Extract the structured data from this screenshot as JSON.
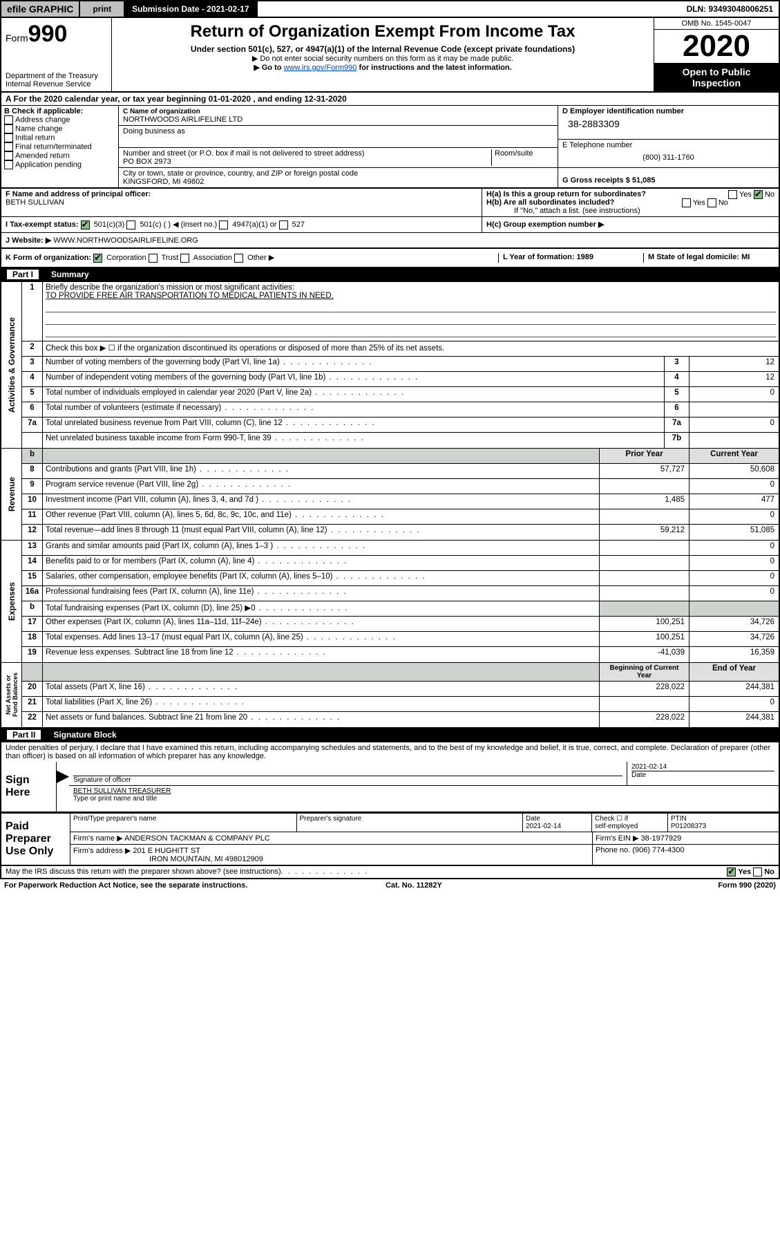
{
  "topbar": {
    "efile": "efile GRAPHIC",
    "print": "print",
    "subdate_label": "Submission Date - 2021-02-17",
    "dln": "DLN: 93493048006251"
  },
  "header": {
    "form_prefix": "Form",
    "form_no": "990",
    "title": "Return of Organization Exempt From Income Tax",
    "sub1": "Under section 501(c), 527, or 4947(a)(1) of the Internal Revenue Code (except private foundations)",
    "sub2a": "▶ Do not enter social security numbers on this form as it may be made public.",
    "sub2b_pre": "▶ Go to ",
    "sub2b_link": "www.irs.gov/Form990",
    "sub2b_post": " for instructions and the latest information.",
    "dept1": "Department of the Treasury",
    "dept2": "Internal Revenue Service",
    "omb": "OMB No. 1545-0047",
    "year": "2020",
    "open1": "Open to Public",
    "open2": "Inspection"
  },
  "period": {
    "text": "A For the 2020 calendar year, or tax year beginning 01-01-2020      , and ending 12-31-2020"
  },
  "B": {
    "label": "B Check if applicable:",
    "opts": [
      "Address change",
      "Name change",
      "Initial return",
      "Final return/terminated",
      "Amended return",
      "Application pending"
    ]
  },
  "C": {
    "name_lbl": "C Name of organization",
    "name": "NORTHWOODS AIRLIFELINE LTD",
    "dba_lbl": "Doing business as",
    "addr_lbl": "Number and street (or P.O. box if mail is not delivered to street address)",
    "room_lbl": "Room/suite",
    "addr": "PO BOX 2973",
    "city_lbl": "City or town, state or province, country, and ZIP or foreign postal code",
    "city": "KINGSFORD, MI  49802",
    "F_lbl": "F Name and address of principal officer:",
    "F_name": "BETH SULLIVAN"
  },
  "D": {
    "ein_lbl": "D Employer identification number",
    "ein": "38-2883309",
    "tel_lbl": "E Telephone number",
    "tel": "(800) 311-1760",
    "gross_lbl": "G Gross receipts $ 51,085"
  },
  "H": {
    "a": "H(a)  Is this a group return for subordinates?",
    "b": "H(b)  Are all subordinates included?",
    "bnote": "If \"No,\" attach a list. (see instructions)",
    "c": "H(c)  Group exemption number ▶"
  },
  "I": {
    "lbl": "I    Tax-exempt status:",
    "opt1": "501(c)(3)",
    "opt2": "501(c) (   ) ◀ (insert no.)",
    "opt3": "4947(a)(1) or",
    "opt4": "527"
  },
  "J": {
    "lbl": "J   Website: ▶",
    "val": "WWW.NORTHWOODSAIRLIFELINE.ORG"
  },
  "K": {
    "lbl": "K Form of organization:",
    "opts": [
      "Corporation",
      "Trust",
      "Association",
      "Other ▶"
    ],
    "L": "L Year of formation: 1989",
    "M": "M State of legal domicile: MI"
  },
  "partI": {
    "label": "Part I",
    "title": "Summary"
  },
  "partII": {
    "label": "Part II",
    "title": "Signature Block"
  },
  "summary": {
    "q1": "Briefly describe the organization's mission or most significant activities:",
    "q1a": "TO PROVIDE FREE AIR TRANSPORTATION TO MEDICAL PATIENTS IN NEED.",
    "q2": "Check this box ▶ ☐  if the organization discontinued its operations or disposed of more than 25% of its net assets.",
    "rows_gov": [
      {
        "n": "3",
        "d": "Number of voting members of the governing body (Part VI, line 1a)",
        "box": "3",
        "v": "12"
      },
      {
        "n": "4",
        "d": "Number of independent voting members of the governing body (Part VI, line 1b)",
        "box": "4",
        "v": "12"
      },
      {
        "n": "5",
        "d": "Total number of individuals employed in calendar year 2020 (Part V, line 2a)",
        "box": "5",
        "v": "0"
      },
      {
        "n": "6",
        "d": "Total number of volunteers (estimate if necessary)",
        "box": "6",
        "v": ""
      },
      {
        "n": "7a",
        "d": "Total unrelated business revenue from Part VIII, column (C), line 12",
        "box": "7a",
        "v": "0"
      },
      {
        "n": "",
        "d": "Net unrelated business taxable income from Form 990-T, line 39",
        "box": "7b",
        "v": ""
      }
    ],
    "col_hdr": {
      "b": "b",
      "prior": "Prior Year",
      "current": "Current Year"
    },
    "rows_rev": [
      {
        "n": "8",
        "d": "Contributions and grants (Part VIII, line 1h)",
        "p": "57,727",
        "c": "50,608"
      },
      {
        "n": "9",
        "d": "Program service revenue (Part VIII, line 2g)",
        "p": "",
        "c": "0"
      },
      {
        "n": "10",
        "d": "Investment income (Part VIII, column (A), lines 3, 4, and 7d )",
        "p": "1,485",
        "c": "477"
      },
      {
        "n": "11",
        "d": "Other revenue (Part VIII, column (A), lines 5, 6d, 8c, 9c, 10c, and 11e)",
        "p": "",
        "c": "0"
      },
      {
        "n": "12",
        "d": "Total revenue—add lines 8 through 11 (must equal Part VIII, column (A), line 12)",
        "p": "59,212",
        "c": "51,085"
      }
    ],
    "rows_exp": [
      {
        "n": "13",
        "d": "Grants and similar amounts paid (Part IX, column (A), lines 1–3 )",
        "p": "",
        "c": "0"
      },
      {
        "n": "14",
        "d": "Benefits paid to or for members (Part IX, column (A), line 4)",
        "p": "",
        "c": "0"
      },
      {
        "n": "15",
        "d": "Salaries, other compensation, employee benefits (Part IX, column (A), lines 5–10)",
        "p": "",
        "c": "0"
      },
      {
        "n": "16a",
        "d": "Professional fundraising fees (Part IX, column (A), line 11e)",
        "p": "",
        "c": "0"
      },
      {
        "n": "b",
        "d": "Total fundraising expenses (Part IX, column (D), line 25)  ▶0",
        "p": "GRAY",
        "c": "GRAY"
      },
      {
        "n": "17",
        "d": "Other expenses (Part IX, column (A), lines 11a–11d, 11f–24e)",
        "p": "100,251",
        "c": "34,726"
      },
      {
        "n": "18",
        "d": "Total expenses. Add lines 13–17 (must equal Part IX, column (A), line 25)",
        "p": "100,251",
        "c": "34,726"
      },
      {
        "n": "19",
        "d": "Revenue less expenses. Subtract line 18 from line 12",
        "p": "-41,039",
        "c": "16,359"
      }
    ],
    "net_hdr": {
      "a": "Beginning of Current Year",
      "b": "End of Year"
    },
    "rows_net": [
      {
        "n": "20",
        "d": "Total assets (Part X, line 16)",
        "p": "228,022",
        "c": "244,381"
      },
      {
        "n": "21",
        "d": "Total liabilities (Part X, line 26)",
        "p": "",
        "c": "0"
      },
      {
        "n": "22",
        "d": "Net assets or fund balances. Subtract line 21 from line 20",
        "p": "228,022",
        "c": "244,381"
      }
    ]
  },
  "sig": {
    "declare": "Under penalties of perjury, I declare that I have examined this return, including accompanying schedules and statements, and to the best of my knowledge and belief, it is true, correct, and complete. Declaration of preparer (other than officer) is based on all information of which preparer has any knowledge.",
    "sign_here": "Sign Here",
    "sig_officer": "Signature of officer",
    "date_val": "2021-02-14",
    "date_lbl": "Date",
    "name_title": "BETH SULLIVAN TREASURER",
    "name_title_lbl": "Type or print name and title"
  },
  "paid": {
    "label": "Paid Preparer Use Only",
    "h1": "Print/Type preparer's name",
    "h2": "Preparer's signature",
    "h3": "Date",
    "h3v": "2021-02-14",
    "h4a": "Check ☐ if",
    "h4b": "self-employed",
    "h5": "PTIN",
    "h5v": "P01208373",
    "firm_name_lbl": "Firm's name   ▶",
    "firm_name": "ANDERSON TACKMAN & COMPANY PLC",
    "firm_ein_lbl": "Firm's EIN ▶",
    "firm_ein": "38-1977929",
    "firm_addr_lbl": "Firm's address ▶",
    "firm_addr1": "201 E HUGHITT ST",
    "firm_addr2": "IRON MOUNTAIN, MI  498012909",
    "phone_lbl": "Phone no.",
    "phone": "(906) 774-4300"
  },
  "footer": {
    "discuss": "May the IRS discuss this return with the preparer shown above? (see instructions)",
    "yes": "Yes",
    "no": "No",
    "paperwork": "For Paperwork Reduction Act Notice, see the separate instructions.",
    "cat": "Cat. No. 11282Y",
    "form": "Form 990 (2020)"
  }
}
